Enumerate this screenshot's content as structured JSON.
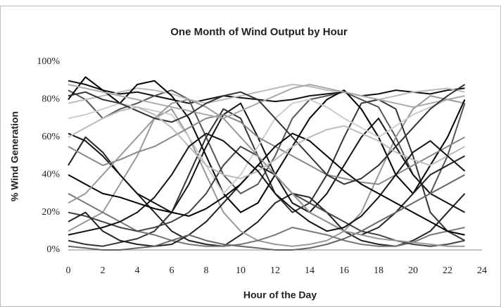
{
  "chart_data": {
    "type": "line",
    "title": "One Month of Wind Output by Hour",
    "x_label": "Hour of the Day",
    "y_label": "% Wind Generation",
    "x": [
      0,
      1,
      2,
      3,
      4,
      5,
      6,
      7,
      8,
      9,
      10,
      11,
      12,
      13,
      14,
      15,
      16,
      17,
      18,
      19,
      20,
      21,
      22,
      23
    ],
    "xlim": [
      0,
      24
    ],
    "xticks": [
      0,
      2,
      4,
      6,
      8,
      10,
      12,
      14,
      16,
      18,
      20,
      22,
      24
    ],
    "ylim": [
      0,
      100
    ],
    "yticks": [
      {
        "value": 0,
        "label": "0%"
      },
      {
        "value": 20,
        "label": "20%"
      },
      {
        "value": 40,
        "label": "40%"
      },
      {
        "value": 60,
        "label": "60%"
      },
      {
        "value": 80,
        "label": "80%"
      },
      {
        "value": 100,
        "label": "100%"
      }
    ],
    "grid": false,
    "series": [
      {
        "color": "#111111",
        "values": [
          90,
          88,
          85,
          83,
          84,
          82,
          80,
          78,
          80,
          82,
          81,
          80,
          79,
          80,
          82,
          83,
          84,
          82,
          83,
          85,
          84,
          83,
          85,
          86
        ]
      },
      {
        "color": "#222222",
        "values": [
          45,
          60,
          52,
          40,
          30,
          20,
          10,
          5,
          3,
          2,
          8,
          15,
          25,
          30,
          28,
          20,
          10,
          5,
          3,
          2,
          5,
          10,
          20,
          30
        ]
      },
      {
        "color": "#555555",
        "values": [
          85,
          80,
          70,
          75,
          78,
          82,
          85,
          80,
          60,
          40,
          30,
          35,
          50,
          70,
          80,
          82,
          84,
          80,
          76,
          60,
          40,
          30,
          50,
          78
        ]
      },
      {
        "color": "#999999",
        "values": [
          10,
          15,
          20,
          35,
          50,
          70,
          75,
          60,
          40,
          20,
          10,
          5,
          3,
          2,
          3,
          5,
          10,
          20,
          40,
          60,
          75,
          82,
          80,
          78
        ]
      },
      {
        "color": "#111111",
        "values": [
          62,
          58,
          50,
          40,
          30,
          25,
          20,
          35,
          55,
          72,
          78,
          60,
          40,
          25,
          20,
          30,
          45,
          60,
          70,
          55,
          40,
          30,
          25,
          20
        ]
      },
      {
        "color": "#bbbbbb",
        "values": [
          78,
          80,
          82,
          84,
          86,
          85,
          83,
          80,
          78,
          80,
          82,
          84,
          86,
          88,
          87,
          85,
          84,
          82,
          80,
          82,
          84,
          85,
          86,
          84
        ]
      },
      {
        "color": "#333333",
        "values": [
          5,
          3,
          2,
          4,
          6,
          10,
          20,
          40,
          60,
          75,
          70,
          50,
          30,
          20,
          25,
          40,
          60,
          78,
          80,
          75,
          50,
          20,
          10,
          5
        ]
      },
      {
        "color": "#777777",
        "values": [
          30,
          25,
          20,
          15,
          10,
          8,
          5,
          3,
          2,
          2,
          3,
          5,
          8,
          12,
          10,
          8,
          5,
          3,
          2,
          2,
          4,
          8,
          10,
          12
        ]
      },
      {
        "color": "#000000",
        "values": [
          80,
          92,
          85,
          78,
          88,
          90,
          82,
          70,
          50,
          30,
          20,
          25,
          40,
          55,
          70,
          80,
          85,
          75,
          60,
          40,
          30,
          45,
          60,
          80
        ]
      },
      {
        "color": "#cccccc",
        "values": [
          70,
          72,
          75,
          78,
          76,
          74,
          72,
          60,
          45,
          30,
          40,
          55,
          70,
          78,
          80,
          76,
          70,
          65,
          60,
          66,
          72,
          76,
          80,
          82
        ]
      },
      {
        "color": "#444444",
        "values": [
          20,
          18,
          15,
          12,
          10,
          12,
          15,
          20,
          30,
          45,
          55,
          50,
          40,
          30,
          25,
          20,
          15,
          10,
          8,
          5,
          3,
          2,
          3,
          5
        ]
      },
      {
        "color": "#888888",
        "values": [
          55,
          50,
          45,
          48,
          52,
          55,
          60,
          65,
          70,
          72,
          68,
          60,
          55,
          50,
          45,
          40,
          38,
          36,
          35,
          40,
          45,
          50,
          55,
          60
        ]
      },
      {
        "color": "#222222",
        "values": [
          15,
          20,
          10,
          5,
          3,
          2,
          3,
          8,
          15,
          25,
          35,
          45,
          40,
          30,
          20,
          15,
          10,
          8,
          12,
          20,
          30,
          40,
          45,
          50
        ]
      },
      {
        "color": "#aaaaaa",
        "values": [
          88,
          86,
          84,
          82,
          80,
          78,
          76,
          74,
          72,
          70,
          74,
          78,
          82,
          86,
          88,
          86,
          84,
          82,
          80,
          78,
          76,
          78,
          80,
          82
        ]
      },
      {
        "color": "#000000",
        "values": [
          40,
          35,
          30,
          28,
          25,
          22,
          20,
          18,
          22,
          28,
          35,
          45,
          55,
          62,
          58,
          50,
          42,
          35,
          30,
          25,
          20,
          15,
          10,
          8
        ]
      },
      {
        "color": "#666666",
        "values": [
          2,
          1,
          0,
          0,
          1,
          2,
          5,
          8,
          5,
          3,
          2,
          1,
          0,
          0,
          1,
          3,
          6,
          10,
          15,
          20,
          25,
          30,
          35,
          40
        ]
      },
      {
        "color": "#999999",
        "values": [
          25,
          30,
          40,
          50,
          60,
          70,
          78,
          80,
          76,
          70,
          60,
          50,
          40,
          30,
          20,
          15,
          10,
          8,
          6,
          5,
          4,
          3,
          2,
          2
        ]
      },
      {
        "color": "#333333",
        "values": [
          82,
          84,
          80,
          78,
          74,
          70,
          68,
          72,
          78,
          82,
          84,
          80,
          70,
          60,
          50,
          40,
          35,
          38,
          45,
          55,
          65,
          75,
          82,
          88
        ]
      },
      {
        "color": "#bbbbbb",
        "values": [
          60,
          65,
          70,
          74,
          76,
          72,
          65,
          55,
          45,
          40,
          38,
          42,
          48,
          55,
          60,
          64,
          66,
          62,
          58,
          52,
          48,
          45,
          50,
          55
        ]
      },
      {
        "color": "#111111",
        "values": [
          8,
          10,
          12,
          15,
          20,
          28,
          40,
          55,
          62,
          58,
          50,
          42,
          30,
          22,
          15,
          10,
          12,
          18,
          28,
          40,
          52,
          58,
          50,
          42
        ]
      }
    ]
  }
}
